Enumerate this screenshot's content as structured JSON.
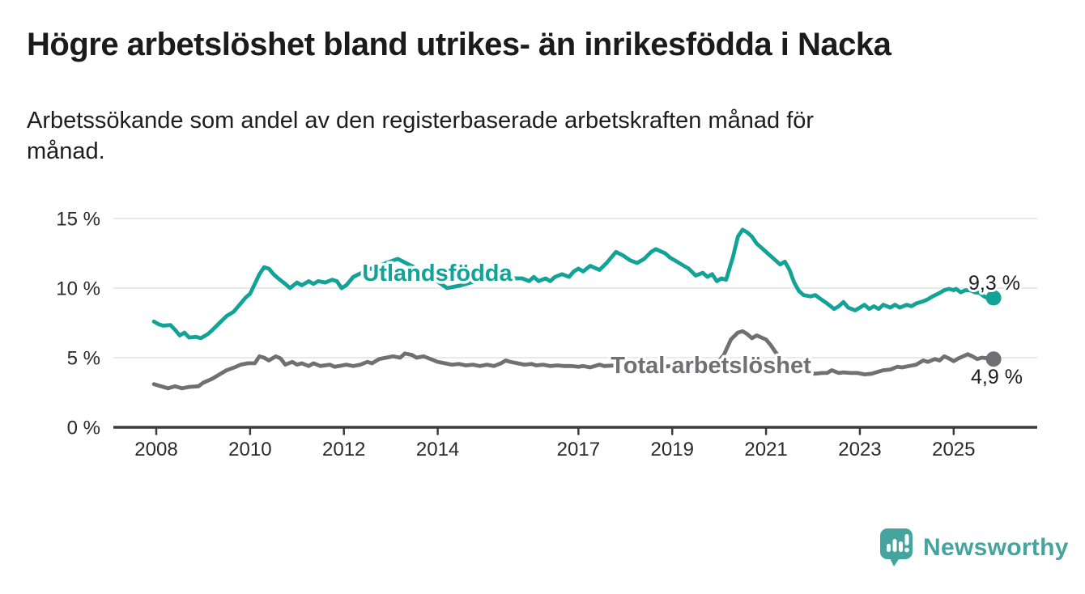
{
  "chart_data": {
    "type": "line",
    "title": "Högre arbetslöshet bland utrikes- än inrikesfödda i Nacka",
    "subtitle": "Arbetssökande som andel av den registerbaserade arbetskraften månad för månad.",
    "subtitle_lines": [
      "Arbetssökande som andel av den registerbaserade arbetskraften månad för",
      "månad."
    ],
    "unit": "%",
    "grid": true,
    "legend": "inline-labels",
    "x_axis": {
      "range": [
        2007.6,
        2026.2
      ],
      "ticks": [
        {
          "value": 2008,
          "label": "2008"
        },
        {
          "value": 2010,
          "label": "2010"
        },
        {
          "value": 2012,
          "label": "2012"
        },
        {
          "value": 2014,
          "label": "2014"
        },
        {
          "value": 2017,
          "label": "2017"
        },
        {
          "value": 2019,
          "label": "2019"
        },
        {
          "value": 2021,
          "label": "2021"
        },
        {
          "value": 2023,
          "label": "2023"
        },
        {
          "value": 2025,
          "label": "2025"
        }
      ]
    },
    "y_axis": {
      "range": [
        0,
        15.5
      ],
      "ticks": [
        {
          "value": 15,
          "label": "15 %"
        },
        {
          "value": 10,
          "label": "10 %"
        },
        {
          "value": 5,
          "label": "5 %"
        },
        {
          "value": 0,
          "label": "0 %"
        }
      ]
    },
    "colors": {
      "grid": "#e2e2e2",
      "axis": "#3c3c3c",
      "text": "#2a2a2a"
    },
    "series": [
      {
        "id": "utlandsfodda",
        "name": "Utlandsfödda",
        "color": "#12a296",
        "end_label": "9,3 %",
        "end_value": 9.3,
        "points": [
          [
            2007.95,
            7.6
          ],
          [
            2008.05,
            7.4
          ],
          [
            2008.15,
            7.3
          ],
          [
            2008.3,
            7.35
          ],
          [
            2008.4,
            7.0
          ],
          [
            2008.5,
            6.6
          ],
          [
            2008.6,
            6.8
          ],
          [
            2008.7,
            6.45
          ],
          [
            2008.85,
            6.5
          ],
          [
            2008.95,
            6.4
          ],
          [
            2009.1,
            6.7
          ],
          [
            2009.2,
            7.0
          ],
          [
            2009.35,
            7.5
          ],
          [
            2009.5,
            8.0
          ],
          [
            2009.65,
            8.3
          ],
          [
            2009.8,
            8.9
          ],
          [
            2009.9,
            9.3
          ],
          [
            2010.0,
            9.6
          ],
          [
            2010.1,
            10.3
          ],
          [
            2010.2,
            11.0
          ],
          [
            2010.3,
            11.5
          ],
          [
            2010.4,
            11.4
          ],
          [
            2010.5,
            11.0
          ],
          [
            2010.6,
            10.7
          ],
          [
            2010.75,
            10.3
          ],
          [
            2010.85,
            10.0
          ],
          [
            2011.0,
            10.4
          ],
          [
            2011.1,
            10.2
          ],
          [
            2011.25,
            10.5
          ],
          [
            2011.35,
            10.3
          ],
          [
            2011.45,
            10.5
          ],
          [
            2011.6,
            10.4
          ],
          [
            2011.75,
            10.6
          ],
          [
            2011.85,
            10.5
          ],
          [
            2011.95,
            10.0
          ],
          [
            2012.05,
            10.2
          ],
          [
            2012.2,
            10.8
          ],
          [
            2012.5,
            11.3
          ],
          [
            2012.9,
            11.8
          ],
          [
            2013.15,
            12.1
          ],
          [
            2013.5,
            11.5
          ],
          [
            2013.9,
            10.7
          ],
          [
            2014.2,
            10.0
          ],
          [
            2014.5,
            10.2
          ],
          [
            2014.8,
            10.5
          ],
          [
            2015.1,
            10.6
          ],
          [
            2015.4,
            10.7
          ],
          [
            2015.65,
            10.7
          ],
          [
            2015.8,
            10.7
          ],
          [
            2015.95,
            10.5
          ],
          [
            2016.05,
            10.8
          ],
          [
            2016.15,
            10.5
          ],
          [
            2016.3,
            10.7
          ],
          [
            2016.4,
            10.5
          ],
          [
            2016.5,
            10.8
          ],
          [
            2016.65,
            11.0
          ],
          [
            2016.8,
            10.8
          ],
          [
            2016.9,
            11.2
          ],
          [
            2017.0,
            11.4
          ],
          [
            2017.1,
            11.2
          ],
          [
            2017.25,
            11.6
          ],
          [
            2017.45,
            11.3
          ],
          [
            2017.6,
            11.8
          ],
          [
            2017.8,
            12.6
          ],
          [
            2017.95,
            12.35
          ],
          [
            2018.1,
            12.0
          ],
          [
            2018.25,
            11.8
          ],
          [
            2018.4,
            12.1
          ],
          [
            2018.55,
            12.6
          ],
          [
            2018.65,
            12.8
          ],
          [
            2018.75,
            12.65
          ],
          [
            2018.85,
            12.5
          ],
          [
            2018.95,
            12.2
          ],
          [
            2019.1,
            11.9
          ],
          [
            2019.25,
            11.6
          ],
          [
            2019.35,
            11.4
          ],
          [
            2019.5,
            10.9
          ],
          [
            2019.65,
            11.1
          ],
          [
            2019.75,
            10.8
          ],
          [
            2019.85,
            11.0
          ],
          [
            2019.95,
            10.5
          ],
          [
            2020.05,
            10.7
          ],
          [
            2020.15,
            10.6
          ],
          [
            2020.3,
            12.3
          ],
          [
            2020.4,
            13.7
          ],
          [
            2020.5,
            14.2
          ],
          [
            2020.6,
            14.0
          ],
          [
            2020.7,
            13.7
          ],
          [
            2020.8,
            13.2
          ],
          [
            2020.9,
            12.9
          ],
          [
            2021.0,
            12.6
          ],
          [
            2021.1,
            12.3
          ],
          [
            2021.2,
            12.0
          ],
          [
            2021.3,
            11.7
          ],
          [
            2021.4,
            11.9
          ],
          [
            2021.5,
            11.3
          ],
          [
            2021.6,
            10.4
          ],
          [
            2021.7,
            9.8
          ],
          [
            2021.8,
            9.5
          ],
          [
            2021.95,
            9.4
          ],
          [
            2022.05,
            9.5
          ],
          [
            2022.15,
            9.25
          ],
          [
            2022.3,
            8.9
          ],
          [
            2022.45,
            8.5
          ],
          [
            2022.55,
            8.7
          ],
          [
            2022.65,
            9.0
          ],
          [
            2022.75,
            8.6
          ],
          [
            2022.9,
            8.4
          ],
          [
            2023.0,
            8.6
          ],
          [
            2023.1,
            8.8
          ],
          [
            2023.2,
            8.5
          ],
          [
            2023.3,
            8.7
          ],
          [
            2023.4,
            8.5
          ],
          [
            2023.5,
            8.8
          ],
          [
            2023.65,
            8.6
          ],
          [
            2023.75,
            8.8
          ],
          [
            2023.85,
            8.6
          ],
          [
            2024.0,
            8.8
          ],
          [
            2024.1,
            8.7
          ],
          [
            2024.2,
            8.9
          ],
          [
            2024.35,
            9.05
          ],
          [
            2024.45,
            9.2
          ],
          [
            2024.55,
            9.4
          ],
          [
            2024.7,
            9.65
          ],
          [
            2024.8,
            9.85
          ],
          [
            2024.9,
            9.95
          ],
          [
            2025.0,
            9.85
          ],
          [
            2025.05,
            9.95
          ],
          [
            2025.15,
            9.7
          ],
          [
            2025.25,
            9.85
          ],
          [
            2025.35,
            9.85
          ],
          [
            2025.45,
            9.7
          ],
          [
            2025.55,
            9.65
          ],
          [
            2025.65,
            9.4
          ],
          [
            2025.75,
            9.25
          ],
          [
            2025.85,
            9.3
          ]
        ]
      },
      {
        "id": "total",
        "name": "Total arbetslöshet",
        "color": "#6f6f74",
        "end_label": "4,9 %",
        "end_value": 4.9,
        "points": [
          [
            2007.95,
            3.1
          ],
          [
            2008.1,
            2.95
          ],
          [
            2008.25,
            2.8
          ],
          [
            2008.4,
            2.95
          ],
          [
            2008.55,
            2.8
          ],
          [
            2008.7,
            2.9
          ],
          [
            2008.9,
            2.95
          ],
          [
            2009.0,
            3.2
          ],
          [
            2009.2,
            3.5
          ],
          [
            2009.35,
            3.8
          ],
          [
            2009.5,
            4.1
          ],
          [
            2009.7,
            4.35
          ],
          [
            2009.8,
            4.5
          ],
          [
            2009.95,
            4.6
          ],
          [
            2010.1,
            4.6
          ],
          [
            2010.2,
            5.1
          ],
          [
            2010.3,
            5.0
          ],
          [
            2010.4,
            4.8
          ],
          [
            2010.55,
            5.1
          ],
          [
            2010.65,
            4.95
          ],
          [
            2010.75,
            4.5
          ],
          [
            2010.9,
            4.7
          ],
          [
            2011.0,
            4.5
          ],
          [
            2011.1,
            4.6
          ],
          [
            2011.25,
            4.4
          ],
          [
            2011.35,
            4.6
          ],
          [
            2011.5,
            4.4
          ],
          [
            2011.7,
            4.5
          ],
          [
            2011.8,
            4.35
          ],
          [
            2011.9,
            4.4
          ],
          [
            2012.05,
            4.5
          ],
          [
            2012.2,
            4.4
          ],
          [
            2012.35,
            4.5
          ],
          [
            2012.5,
            4.7
          ],
          [
            2012.6,
            4.6
          ],
          [
            2012.75,
            4.9
          ],
          [
            2012.9,
            5.0
          ],
          [
            2013.05,
            5.1
          ],
          [
            2013.2,
            5.0
          ],
          [
            2013.3,
            5.3
          ],
          [
            2013.45,
            5.2
          ],
          [
            2013.55,
            5.0
          ],
          [
            2013.7,
            5.1
          ],
          [
            2013.85,
            4.9
          ],
          [
            2014.0,
            4.7
          ],
          [
            2014.15,
            4.6
          ],
          [
            2014.3,
            4.5
          ],
          [
            2014.45,
            4.55
          ],
          [
            2014.6,
            4.45
          ],
          [
            2014.75,
            4.5
          ],
          [
            2014.9,
            4.4
          ],
          [
            2015.05,
            4.5
          ],
          [
            2015.2,
            4.4
          ],
          [
            2015.35,
            4.6
          ],
          [
            2015.45,
            4.8
          ],
          [
            2015.55,
            4.7
          ],
          [
            2015.7,
            4.6
          ],
          [
            2015.85,
            4.5
          ],
          [
            2016.0,
            4.55
          ],
          [
            2016.1,
            4.45
          ],
          [
            2016.25,
            4.5
          ],
          [
            2016.4,
            4.4
          ],
          [
            2016.55,
            4.45
          ],
          [
            2016.7,
            4.4
          ],
          [
            2016.85,
            4.4
          ],
          [
            2017.0,
            4.35
          ],
          [
            2017.1,
            4.4
          ],
          [
            2017.25,
            4.3
          ],
          [
            2017.45,
            4.5
          ],
          [
            2017.55,
            4.4
          ],
          [
            2017.8,
            4.45
          ],
          [
            2018.0,
            4.4
          ],
          [
            2018.25,
            4.45
          ],
          [
            2018.5,
            4.4
          ],
          [
            2018.75,
            4.35
          ],
          [
            2019.0,
            4.4
          ],
          [
            2019.25,
            4.35
          ],
          [
            2019.5,
            4.4
          ],
          [
            2019.75,
            4.45
          ],
          [
            2019.95,
            4.6
          ],
          [
            2020.1,
            5.2
          ],
          [
            2020.25,
            6.3
          ],
          [
            2020.4,
            6.8
          ],
          [
            2020.5,
            6.9
          ],
          [
            2020.6,
            6.7
          ],
          [
            2020.7,
            6.4
          ],
          [
            2020.8,
            6.6
          ],
          [
            2020.9,
            6.45
          ],
          [
            2021.0,
            6.3
          ],
          [
            2021.1,
            5.9
          ],
          [
            2021.2,
            5.4
          ],
          [
            2021.3,
            5.0
          ],
          [
            2021.45,
            4.6
          ],
          [
            2021.6,
            4.3
          ],
          [
            2021.75,
            4.1
          ],
          [
            2021.9,
            3.95
          ],
          [
            2022.05,
            3.85
          ],
          [
            2022.2,
            3.9
          ],
          [
            2022.3,
            3.9
          ],
          [
            2022.4,
            4.1
          ],
          [
            2022.55,
            3.9
          ],
          [
            2022.65,
            3.95
          ],
          [
            2022.8,
            3.9
          ],
          [
            2022.95,
            3.9
          ],
          [
            2023.1,
            3.8
          ],
          [
            2023.25,
            3.85
          ],
          [
            2023.4,
            4.0
          ],
          [
            2023.5,
            4.1
          ],
          [
            2023.65,
            4.15
          ],
          [
            2023.8,
            4.35
          ],
          [
            2023.9,
            4.3
          ],
          [
            2024.05,
            4.4
          ],
          [
            2024.2,
            4.5
          ],
          [
            2024.35,
            4.8
          ],
          [
            2024.45,
            4.7
          ],
          [
            2024.6,
            4.9
          ],
          [
            2024.7,
            4.8
          ],
          [
            2024.8,
            5.1
          ],
          [
            2024.9,
            4.95
          ],
          [
            2025.0,
            4.75
          ],
          [
            2025.1,
            4.95
          ],
          [
            2025.2,
            5.1
          ],
          [
            2025.3,
            5.25
          ],
          [
            2025.4,
            5.1
          ],
          [
            2025.5,
            4.9
          ],
          [
            2025.6,
            5.0
          ],
          [
            2025.75,
            4.95
          ],
          [
            2025.85,
            4.9
          ]
        ]
      }
    ]
  },
  "branding": {
    "wordmark": "Newsworthy",
    "color": "#46a49f"
  }
}
